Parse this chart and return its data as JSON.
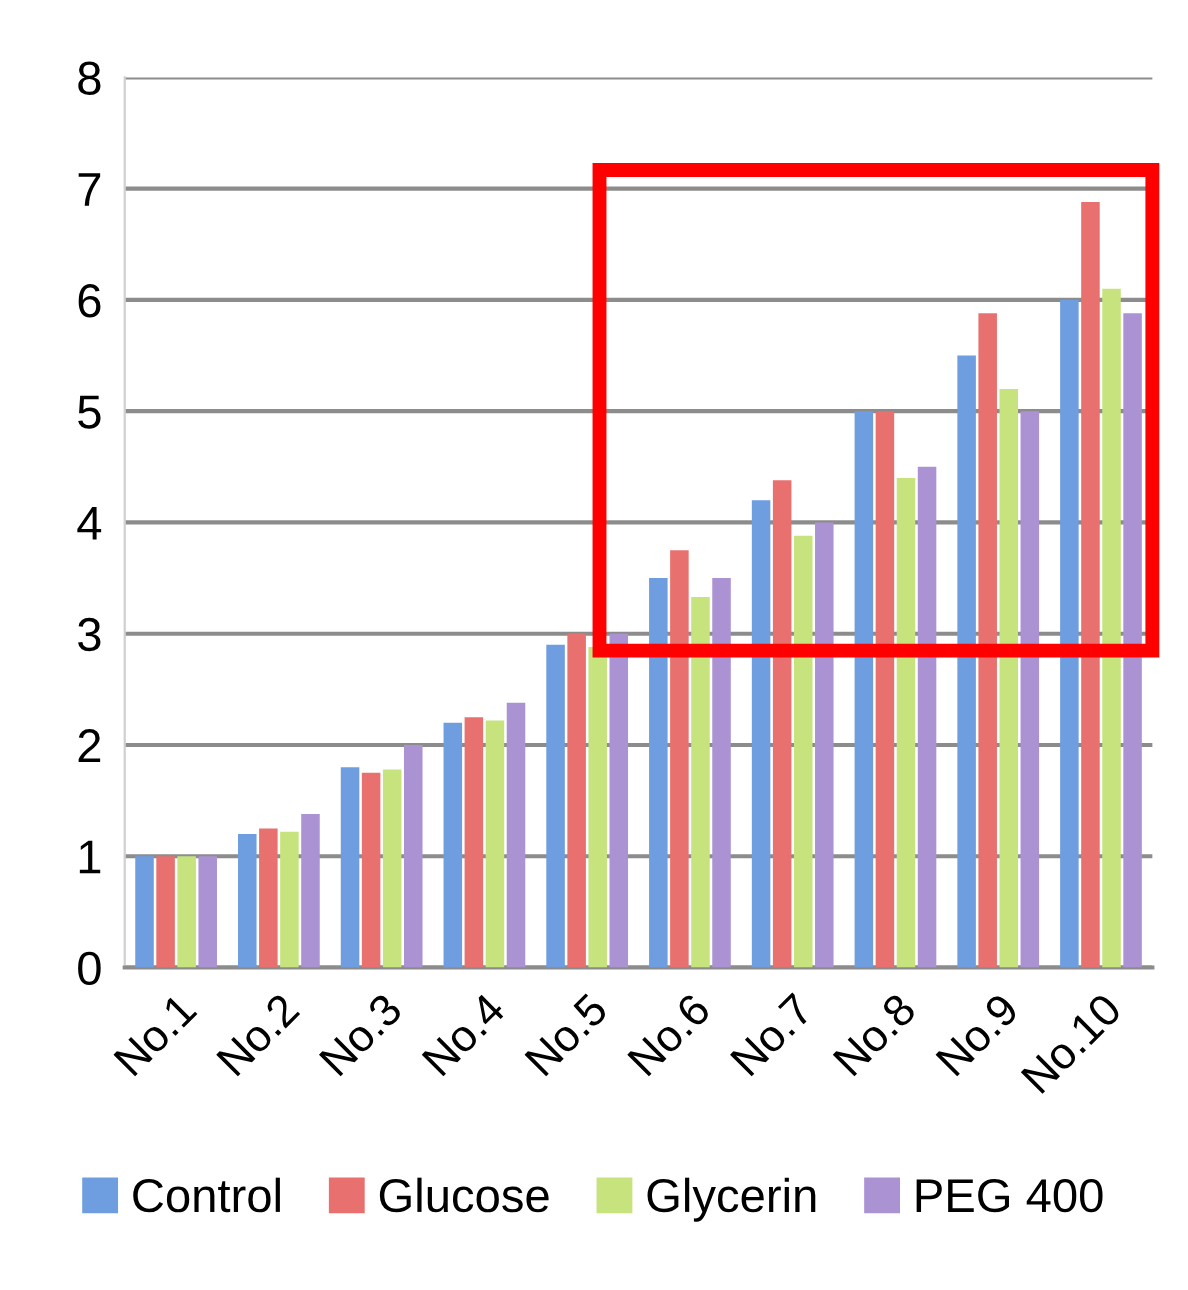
{
  "chart_data": {
    "type": "bar",
    "categories": [
      "No.1",
      "No.2",
      "No.3",
      "No.4",
      "No.5",
      "No.6",
      "No.7",
      "No.8",
      "No.9",
      "No.10"
    ],
    "series": [
      {
        "name": "Control",
        "color": "#6f9ee0",
        "values": [
          1,
          1.2,
          1.8,
          2.2,
          2.9,
          3.5,
          4.2,
          5.0,
          5.5,
          6.0
        ]
      },
      {
        "name": "Glucose",
        "color": "#e8706e",
        "values": [
          1,
          1.25,
          1.75,
          2.25,
          3.0,
          3.75,
          4.38,
          5.0,
          5.88,
          6.88
        ]
      },
      {
        "name": "Glycerin",
        "color": "#c6e37e",
        "values": [
          1,
          1.22,
          1.78,
          2.22,
          2.88,
          3.33,
          3.88,
          4.4,
          5.2,
          6.1
        ]
      },
      {
        "name": "PEG 400",
        "color": "#ab93d3",
        "values": [
          1,
          1.38,
          2.0,
          2.38,
          3.0,
          3.5,
          4.0,
          4.5,
          5.0,
          5.88
        ]
      }
    ],
    "ylim": [
      0,
      8
    ],
    "yticks": [
      0,
      1,
      2,
      3,
      4,
      5,
      6,
      7,
      8
    ],
    "grid": "y",
    "legend": "bottom"
  }
}
